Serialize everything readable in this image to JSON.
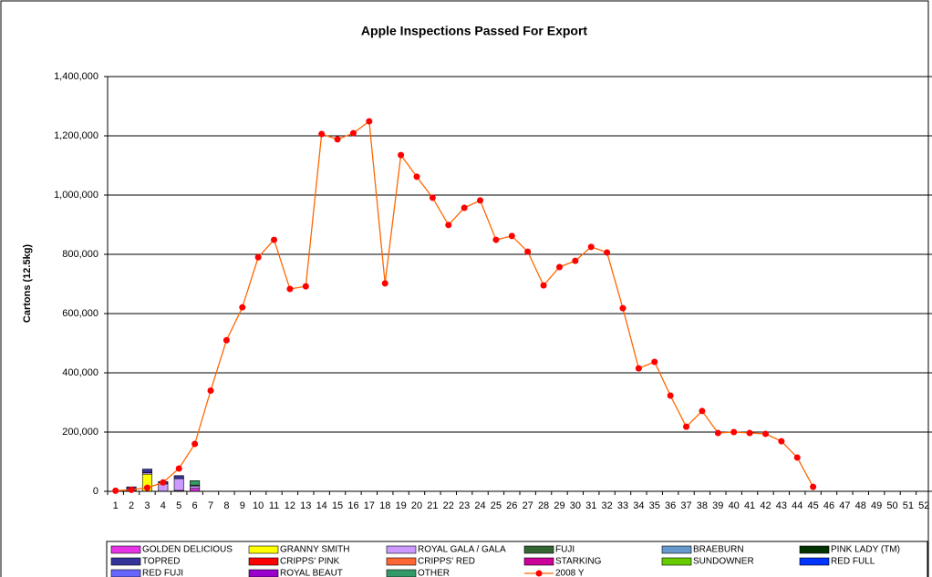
{
  "chart_data": {
    "type": "stacked_bar_line",
    "title": "Apple Inspections Passed For Export",
    "y_label": "Cartons (12.5kg)",
    "categories": [
      "1",
      "2",
      "3",
      "4",
      "5",
      "6",
      "7",
      "8",
      "9",
      "10",
      "11",
      "12",
      "13",
      "14",
      "15",
      "16",
      "17",
      "18",
      "19",
      "20",
      "21",
      "22",
      "23",
      "24",
      "25",
      "26",
      "27",
      "28",
      "29",
      "30",
      "31",
      "32",
      "33",
      "34",
      "35",
      "36",
      "37",
      "38",
      "39",
      "40",
      "41",
      "42",
      "43",
      "44",
      "45",
      "46",
      "47",
      "48",
      "49",
      "50",
      "51",
      "52"
    ],
    "ylim": [
      0,
      1400000
    ],
    "yticks": [
      0,
      {
        "value": 200000,
        "label": "200,000"
      },
      {
        "value": 400000,
        "label": "400,000"
      },
      {
        "value": 600000,
        "label": "600,000"
      },
      {
        "value": 800000,
        "label": "800,000"
      },
      {
        "value": 1000000,
        "label": "1,000,000"
      },
      {
        "value": 1200000,
        "label": "1,200,000"
      },
      {
        "value": 1400000,
        "label": "1,400,000"
      }
    ],
    "grid": true,
    "series": [
      {
        "name": "GOLDEN DELICIOUS",
        "color": "#e633e6",
        "values": [
          null,
          null,
          null,
          null,
          3000,
          10000,
          null,
          null,
          null,
          null,
          null,
          null,
          null,
          null,
          null,
          null,
          null,
          null,
          null,
          null,
          null,
          null,
          null,
          null,
          null,
          null,
          null,
          null,
          null,
          null,
          null,
          null,
          null,
          null,
          null,
          null,
          null,
          null,
          null,
          null,
          null,
          null,
          null,
          null,
          null,
          null,
          null,
          null,
          null,
          null,
          null,
          null
        ]
      },
      {
        "name": "GRANNY SMITH",
        "color": "#ffff00",
        "values": [
          null,
          null,
          58000,
          null,
          null,
          null,
          null,
          null,
          null,
          null,
          null,
          null,
          null,
          null,
          null,
          null,
          null,
          null,
          null,
          null,
          null,
          null,
          null,
          null,
          null,
          null,
          null,
          null,
          null,
          null,
          null,
          null,
          null,
          null,
          null,
          null,
          null,
          null,
          null,
          null,
          null,
          null,
          null,
          null,
          null,
          null,
          null,
          null,
          null,
          null,
          null,
          null
        ]
      },
      {
        "name": "ROYAL GALA / GALA",
        "color": "#cc99ff",
        "values": [
          null,
          null,
          5000,
          25000,
          40000,
          8000,
          null,
          null,
          null,
          null,
          null,
          null,
          null,
          null,
          null,
          null,
          null,
          null,
          null,
          null,
          null,
          null,
          null,
          null,
          null,
          null,
          null,
          null,
          null,
          null,
          null,
          null,
          null,
          null,
          null,
          null,
          null,
          null,
          null,
          null,
          null,
          null,
          null,
          null,
          null,
          null,
          null,
          null,
          null,
          null,
          null,
          null
        ]
      },
      {
        "name": "FUJI",
        "color": "#336633",
        "values": [
          null,
          null,
          null,
          null,
          null,
          3000,
          null,
          null,
          null,
          null,
          null,
          null,
          null,
          null,
          null,
          null,
          null,
          null,
          null,
          null,
          null,
          null,
          null,
          null,
          null,
          null,
          null,
          null,
          null,
          null,
          null,
          null,
          null,
          null,
          null,
          null,
          null,
          null,
          null,
          null,
          null,
          null,
          null,
          null,
          null,
          null,
          null,
          null,
          null,
          null,
          null,
          null
        ]
      },
      {
        "name": "BRAEBURN",
        "color": "#6699cc",
        "values": [
          null,
          null,
          null,
          null,
          null,
          null,
          null,
          null,
          null,
          null,
          null,
          null,
          null,
          null,
          null,
          null,
          null,
          null,
          null,
          null,
          null,
          null,
          null,
          null,
          null,
          null,
          null,
          null,
          null,
          null,
          null,
          null,
          null,
          null,
          null,
          null,
          null,
          null,
          null,
          null,
          null,
          null,
          null,
          null,
          null,
          null,
          null,
          null,
          null,
          null,
          null,
          null
        ]
      },
      {
        "name": "PINK LADY (TM)",
        "color": "#003300",
        "values": [
          null,
          null,
          null,
          null,
          null,
          null,
          null,
          null,
          null,
          null,
          null,
          null,
          null,
          null,
          null,
          null,
          null,
          null,
          null,
          null,
          null,
          null,
          null,
          null,
          null,
          null,
          null,
          null,
          null,
          null,
          null,
          null,
          null,
          null,
          null,
          null,
          null,
          null,
          null,
          null,
          null,
          null,
          null,
          null,
          null,
          null,
          null,
          null,
          null,
          null,
          null,
          null
        ]
      },
      {
        "name": "TOPRED",
        "color": "#333399",
        "values": [
          null,
          15000,
          12000,
          8000,
          10000,
          null,
          null,
          null,
          null,
          null,
          null,
          null,
          null,
          null,
          null,
          null,
          null,
          null,
          null,
          null,
          null,
          null,
          null,
          null,
          null,
          null,
          null,
          null,
          null,
          null,
          null,
          null,
          null,
          null,
          null,
          null,
          null,
          null,
          null,
          null,
          null,
          null,
          null,
          null,
          null,
          null,
          null,
          null,
          null,
          null,
          null,
          null
        ]
      },
      {
        "name": "CRIPPS' PINK",
        "color": "#ff0000",
        "values": [
          null,
          null,
          null,
          null,
          null,
          null,
          null,
          null,
          null,
          null,
          null,
          null,
          null,
          null,
          null,
          null,
          null,
          null,
          null,
          null,
          null,
          null,
          null,
          null,
          null,
          null,
          null,
          null,
          null,
          null,
          null,
          null,
          null,
          null,
          null,
          null,
          null,
          null,
          null,
          null,
          null,
          null,
          null,
          null,
          null,
          null,
          null,
          null,
          null,
          null,
          null,
          null
        ]
      },
      {
        "name": "CRIPPS' RED",
        "color": "#ff6633",
        "values": [
          null,
          null,
          null,
          null,
          null,
          null,
          null,
          null,
          null,
          null,
          null,
          null,
          null,
          null,
          null,
          null,
          null,
          null,
          null,
          null,
          null,
          null,
          null,
          null,
          null,
          null,
          null,
          null,
          null,
          null,
          null,
          null,
          null,
          null,
          null,
          null,
          null,
          null,
          null,
          null,
          null,
          null,
          null,
          null,
          null,
          null,
          null,
          null,
          null,
          null,
          null,
          null
        ]
      },
      {
        "name": "STARKING",
        "color": "#cc0099",
        "values": [
          null,
          null,
          null,
          null,
          null,
          null,
          null,
          null,
          null,
          null,
          null,
          null,
          null,
          null,
          null,
          null,
          null,
          null,
          null,
          null,
          null,
          null,
          null,
          null,
          null,
          null,
          null,
          null,
          null,
          null,
          null,
          null,
          null,
          null,
          null,
          null,
          null,
          null,
          null,
          null,
          null,
          null,
          null,
          null,
          null,
          null,
          null,
          null,
          null,
          null,
          null,
          null
        ]
      },
      {
        "name": "SUNDOWNER",
        "color": "#66cc00",
        "values": [
          null,
          null,
          null,
          null,
          null,
          null,
          null,
          null,
          null,
          null,
          null,
          null,
          null,
          null,
          null,
          null,
          null,
          null,
          null,
          null,
          null,
          null,
          null,
          null,
          null,
          null,
          null,
          null,
          null,
          null,
          null,
          null,
          null,
          null,
          null,
          null,
          null,
          null,
          null,
          null,
          null,
          null,
          null,
          null,
          null,
          null,
          null,
          null,
          null,
          null,
          null,
          null
        ]
      },
      {
        "name": "RED FULL",
        "color": "#0033ff",
        "values": [
          null,
          null,
          null,
          null,
          null,
          null,
          null,
          null,
          null,
          null,
          null,
          null,
          null,
          null,
          null,
          null,
          null,
          null,
          null,
          null,
          null,
          null,
          null,
          null,
          null,
          null,
          null,
          null,
          null,
          null,
          null,
          null,
          null,
          null,
          null,
          null,
          null,
          null,
          null,
          null,
          null,
          null,
          null,
          null,
          null,
          null,
          null,
          null,
          null,
          null,
          null,
          null
        ]
      },
      {
        "name": "RED FUJI",
        "color": "#6666ff",
        "values": [
          null,
          null,
          null,
          null,
          null,
          null,
          null,
          null,
          null,
          null,
          null,
          null,
          null,
          null,
          null,
          null,
          null,
          null,
          null,
          null,
          null,
          null,
          null,
          null,
          null,
          null,
          null,
          null,
          null,
          null,
          null,
          null,
          null,
          null,
          null,
          null,
          null,
          null,
          null,
          null,
          null,
          null,
          null,
          null,
          null,
          null,
          null,
          null,
          null,
          null,
          null,
          null
        ]
      },
      {
        "name": "ROYAL BEAUT",
        "color": "#9900cc",
        "values": [
          null,
          null,
          null,
          null,
          null,
          null,
          null,
          null,
          null,
          null,
          null,
          null,
          null,
          null,
          null,
          null,
          null,
          null,
          null,
          null,
          null,
          null,
          null,
          null,
          null,
          null,
          null,
          null,
          null,
          null,
          null,
          null,
          null,
          null,
          null,
          null,
          null,
          null,
          null,
          null,
          null,
          null,
          null,
          null,
          null,
          null,
          null,
          null,
          null,
          null,
          null,
          null
        ]
      },
      {
        "name": "OTHER",
        "color": "#339966",
        "values": [
          null,
          null,
          null,
          null,
          null,
          15000,
          null,
          null,
          null,
          null,
          null,
          null,
          null,
          null,
          null,
          null,
          null,
          null,
          null,
          null,
          null,
          null,
          null,
          null,
          null,
          null,
          null,
          null,
          null,
          null,
          null,
          null,
          null,
          null,
          null,
          null,
          null,
          null,
          null,
          null,
          null,
          null,
          null,
          null,
          null,
          null,
          null,
          null,
          null,
          null,
          null,
          null
        ]
      },
      {
        "name": "2008 Y",
        "type": "line",
        "color": "#ff6600",
        "marker_color": "#ff0000",
        "values": [
          2000,
          5000,
          12000,
          30000,
          77000,
          160000,
          340000,
          510000,
          621000,
          790000,
          849000,
          683000,
          692000,
          1206000,
          1188000,
          1209000,
          1249000,
          702000,
          1135000,
          1062000,
          991000,
          899000,
          957000,
          982000,
          849000,
          862000,
          809000,
          695000,
          757000,
          778000,
          825000,
          806000,
          618000,
          415000,
          437000,
          323000,
          218000,
          271000,
          197000,
          200000,
          197000,
          194000,
          169000,
          114000,
          15000,
          null,
          null,
          null,
          null,
          null,
          null,
          null
        ]
      }
    ]
  }
}
